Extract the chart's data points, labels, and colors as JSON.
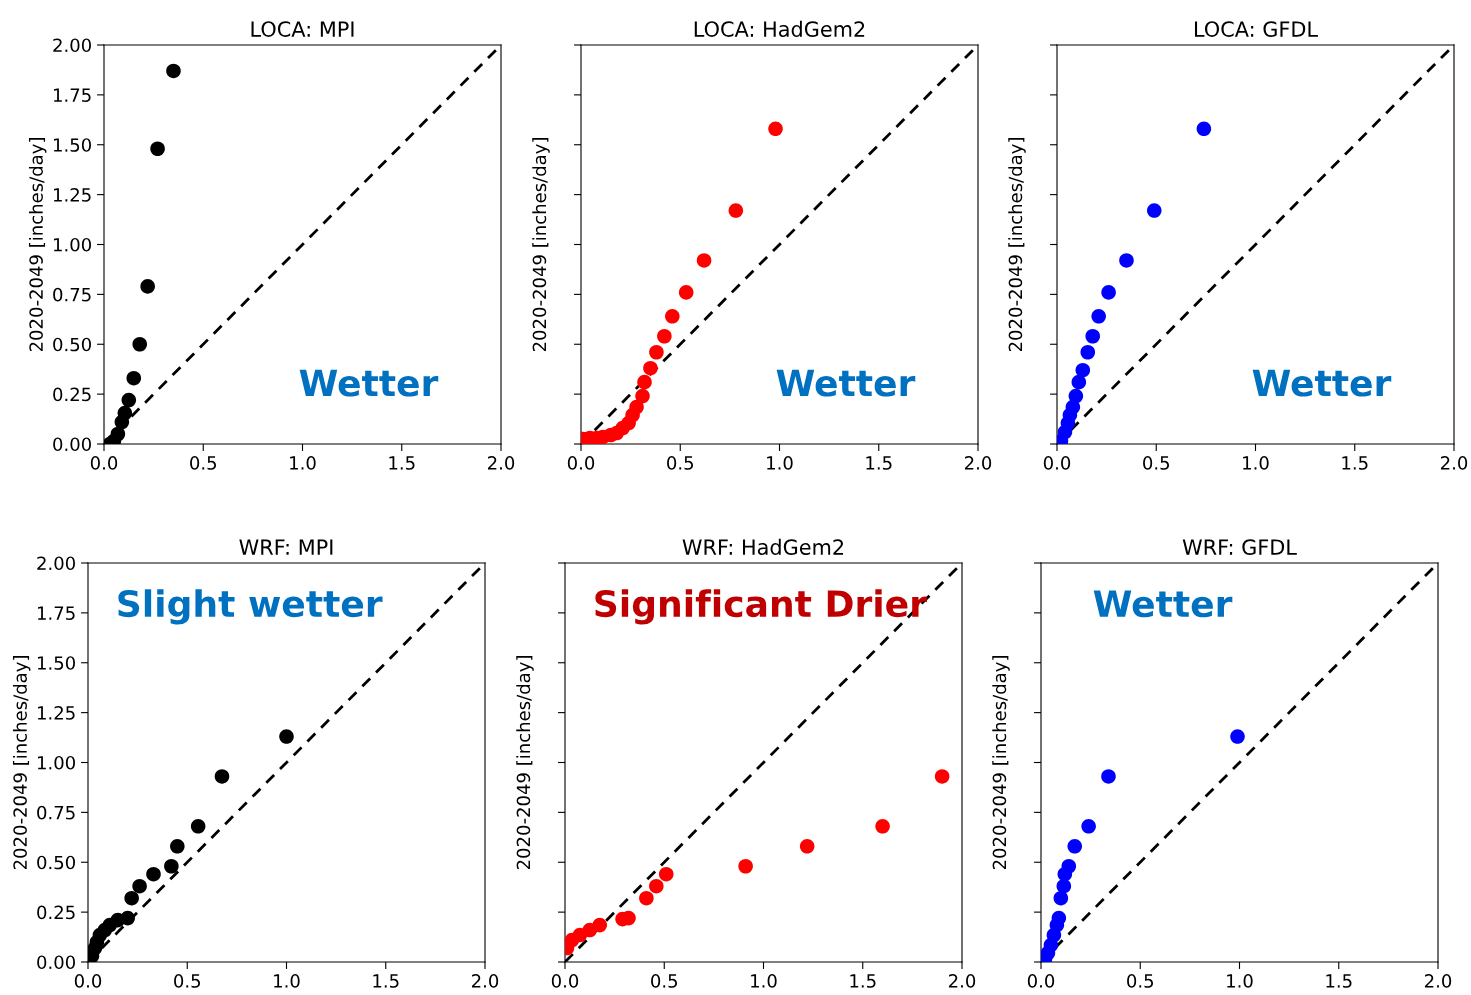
{
  "chart_data": [
    {
      "type": "scatter",
      "title": "LOCA: MPI",
      "ylabel": "2020-2049 [inches/day]",
      "xlim": [
        0,
        2
      ],
      "ylim": [
        0,
        2
      ],
      "xticks": [
        {
          "value": 0,
          "label": "0.0"
        },
        {
          "value": 0.5,
          "label": "0.5"
        },
        {
          "value": 1,
          "label": "1.0"
        },
        {
          "value": 1.5,
          "label": "1.5"
        },
        {
          "value": 2,
          "label": "2.0"
        }
      ],
      "yticks": [
        {
          "value": 0,
          "label": "0.00"
        },
        {
          "value": 0.25,
          "label": "0.25"
        },
        {
          "value": 0.5,
          "label": "0.50"
        },
        {
          "value": 0.75,
          "label": "0.75"
        },
        {
          "value": 1,
          "label": "1.00"
        },
        {
          "value": 1.25,
          "label": "1.25"
        },
        {
          "value": 1.5,
          "label": "1.50"
        },
        {
          "value": 1.75,
          "label": "1.75"
        },
        {
          "value": 2,
          "label": "2.00"
        }
      ],
      "grid": false,
      "annotations": [
        "Wetter"
      ],
      "series": [
        {
          "marker": "circle",
          "color": "#000000",
          "x": [
            0.35,
            0.27,
            0.22,
            0.18,
            0.15,
            0.125,
            0.105,
            0.09,
            0.07,
            0.05,
            0.03
          ],
          "values": [
            1.87,
            1.48,
            0.79,
            0.5,
            0.33,
            0.22,
            0.155,
            0.11,
            0.05,
            0.015,
            0.0
          ]
        },
        {
          "type": "line",
          "color": "#000000",
          "line_style": "dashed",
          "x": [
            0,
            2
          ],
          "values": [
            0,
            2
          ]
        }
      ]
    },
    {
      "type": "scatter",
      "title": "LOCA: HadGem2",
      "ylabel": "2020-2049 [inches/day]",
      "xlim": [
        0,
        2
      ],
      "ylim": [
        0,
        2
      ],
      "tick_labels": "x",
      "xticks": [
        {
          "value": 0,
          "label": "0.0"
        },
        {
          "value": 0.5,
          "label": "0.5"
        },
        {
          "value": 1,
          "label": "1.0"
        },
        {
          "value": 1.5,
          "label": "1.5"
        },
        {
          "value": 2,
          "label": "2.0"
        }
      ],
      "yticks": [
        0,
        0.25,
        0.5,
        0.75,
        1,
        1.25,
        1.5,
        1.75,
        2
      ],
      "grid": false,
      "annotations": [
        "Wetter"
      ],
      "series": [
        {
          "marker": "circle",
          "color": "#ff0000",
          "x": [
            0.98,
            0.78,
            0.62,
            0.53,
            0.46,
            0.42,
            0.38,
            0.35,
            0.32,
            0.31,
            0.28,
            0.26,
            0.24,
            0.21,
            0.18,
            0.15,
            0.11,
            0.08,
            0.045,
            0.01
          ],
          "values": [
            1.58,
            1.17,
            0.92,
            0.76,
            0.64,
            0.54,
            0.46,
            0.38,
            0.31,
            0.24,
            0.185,
            0.145,
            0.105,
            0.08,
            0.055,
            0.045,
            0.035,
            0.03,
            0.03,
            0.025
          ]
        },
        {
          "type": "line",
          "color": "#000000",
          "line_style": "dashed",
          "x": [
            0,
            2
          ],
          "values": [
            0,
            2
          ]
        }
      ]
    },
    {
      "type": "scatter",
      "title": "LOCA: GFDL",
      "ylabel": "2020-2049 [inches/day]",
      "xlim": [
        0,
        2
      ],
      "ylim": [
        0,
        2
      ],
      "tick_labels": "x",
      "xticks": [
        {
          "value": 0,
          "label": "0.0"
        },
        {
          "value": 0.5,
          "label": "0.5"
        },
        {
          "value": 1,
          "label": "1.0"
        },
        {
          "value": 1.5,
          "label": "1.5"
        },
        {
          "value": 2,
          "label": "2.0"
        }
      ],
      "yticks": [
        0,
        0.25,
        0.5,
        0.75,
        1,
        1.25,
        1.5,
        1.75,
        2
      ],
      "grid": false,
      "annotations": [
        "Wetter"
      ],
      "series": [
        {
          "marker": "circle",
          "color": "#0000ff",
          "x": [
            0.74,
            0.49,
            0.35,
            0.26,
            0.21,
            0.18,
            0.155,
            0.13,
            0.11,
            0.095,
            0.08,
            0.065,
            0.055,
            0.04,
            0.02
          ],
          "values": [
            1.58,
            1.17,
            0.92,
            0.76,
            0.64,
            0.54,
            0.46,
            0.37,
            0.31,
            0.24,
            0.185,
            0.145,
            0.105,
            0.06,
            0.015
          ]
        },
        {
          "type": "line",
          "color": "#000000",
          "line_style": "dashed",
          "x": [
            0,
            2
          ],
          "values": [
            0,
            2
          ]
        }
      ]
    },
    {
      "type": "scatter",
      "title": "WRF: MPI",
      "ylabel": "2020-2049 [inches/day]",
      "xlim": [
        0,
        2
      ],
      "ylim": [
        0,
        2
      ],
      "xticks": [
        {
          "value": 0,
          "label": "0.0"
        },
        {
          "value": 0.5,
          "label": "0.5"
        },
        {
          "value": 1,
          "label": "1.0"
        },
        {
          "value": 1.5,
          "label": "1.5"
        },
        {
          "value": 2,
          "label": "2.0"
        }
      ],
      "yticks": [
        {
          "value": 0,
          "label": "0.00"
        },
        {
          "value": 0.25,
          "label": "0.25"
        },
        {
          "value": 0.5,
          "label": "0.50"
        },
        {
          "value": 0.75,
          "label": "0.75"
        },
        {
          "value": 1,
          "label": "1.00"
        },
        {
          "value": 1.25,
          "label": "1.25"
        },
        {
          "value": 1.5,
          "label": "1.50"
        },
        {
          "value": 1.75,
          "label": "1.75"
        },
        {
          "value": 2,
          "label": "2.00"
        }
      ],
      "grid": false,
      "annotations": [
        "Slight wetter"
      ],
      "series": [
        {
          "marker": "circle",
          "color": "#000000",
          "x": [
            1.0,
            0.675,
            0.555,
            0.45,
            0.42,
            0.33,
            0.26,
            0.22,
            0.2,
            0.15,
            0.11,
            0.085,
            0.06,
            0.045,
            0.035,
            0.02
          ],
          "values": [
            1.13,
            0.93,
            0.68,
            0.58,
            0.48,
            0.44,
            0.38,
            0.32,
            0.22,
            0.21,
            0.185,
            0.16,
            0.135,
            0.1,
            0.07,
            0.03
          ]
        },
        {
          "type": "line",
          "color": "#000000",
          "line_style": "dashed",
          "x": [
            0,
            2
          ],
          "values": [
            0,
            2
          ]
        }
      ]
    },
    {
      "type": "scatter",
      "title": "WRF: HadGem2",
      "ylabel": "2020-2049 [inches/day]",
      "xlim": [
        0,
        2
      ],
      "ylim": [
        0,
        2
      ],
      "tick_labels": "x",
      "xticks": [
        {
          "value": 0,
          "label": "0.0"
        },
        {
          "value": 0.5,
          "label": "0.5"
        },
        {
          "value": 1,
          "label": "1.0"
        },
        {
          "value": 1.5,
          "label": "1.5"
        },
        {
          "value": 2,
          "label": "2.0"
        }
      ],
      "yticks": [
        0,
        0.25,
        0.5,
        0.75,
        1,
        1.25,
        1.5,
        1.75,
        2
      ],
      "grid": false,
      "annotations": [
        "Significant Drier"
      ],
      "series": [
        {
          "marker": "circle",
          "color": "#ff0000",
          "x": [
            1.9,
            1.6,
            1.22,
            0.91,
            0.51,
            0.46,
            0.41,
            0.32,
            0.29,
            0.175,
            0.125,
            0.075,
            0.035,
            0.01
          ],
          "values": [
            0.93,
            0.68,
            0.58,
            0.48,
            0.44,
            0.38,
            0.32,
            0.22,
            0.215,
            0.185,
            0.16,
            0.135,
            0.11,
            0.07
          ]
        },
        {
          "type": "line",
          "color": "#000000",
          "line_style": "dashed",
          "x": [
            0,
            2
          ],
          "values": [
            0,
            2
          ]
        }
      ]
    },
    {
      "type": "scatter",
      "title": "WRF: GFDL",
      "ylabel": "2020-2049 [inches/day]",
      "xlim": [
        0,
        2
      ],
      "ylim": [
        0,
        2
      ],
      "tick_labels": "x",
      "xticks": [
        {
          "value": 0,
          "label": "0.0"
        },
        {
          "value": 0.5,
          "label": "0.5"
        },
        {
          "value": 1,
          "label": "1.0"
        },
        {
          "value": 1.5,
          "label": "1.5"
        },
        {
          "value": 2,
          "label": "2.0"
        }
      ],
      "yticks": [
        0,
        0.25,
        0.5,
        0.75,
        1,
        1.25,
        1.5,
        1.75,
        2
      ],
      "grid": false,
      "annotations": [
        "Wetter"
      ],
      "series": [
        {
          "marker": "circle",
          "color": "#0000ff",
          "x": [
            0.99,
            0.34,
            0.24,
            0.17,
            0.14,
            0.12,
            0.115,
            0.1,
            0.09,
            0.08,
            0.065,
            0.05,
            0.035,
            0.02
          ],
          "values": [
            1.13,
            0.93,
            0.68,
            0.58,
            0.48,
            0.44,
            0.38,
            0.32,
            0.22,
            0.185,
            0.135,
            0.085,
            0.045,
            0.015
          ]
        },
        {
          "type": "line",
          "color": "#000000",
          "line_style": "dashed",
          "x": [
            0,
            2
          ],
          "values": [
            0,
            2
          ]
        }
      ]
    }
  ]
}
